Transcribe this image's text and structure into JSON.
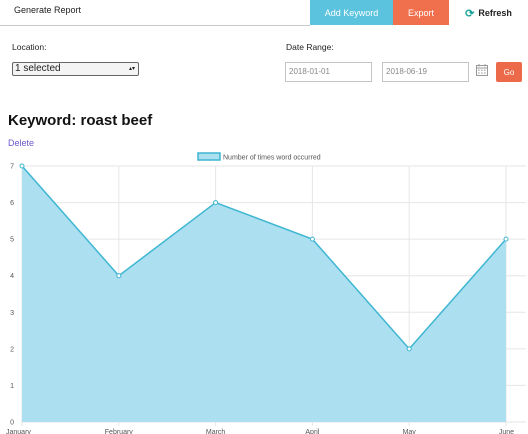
{
  "header": {
    "generate_tab": "Generate Report",
    "add_keyword": "Add Keyword",
    "export": "Export",
    "refresh": "Refresh"
  },
  "filters": {
    "location_label": "Location:",
    "location_value": "1 selected",
    "date_range_label": "Date Range:",
    "start_date": "2018-01-01",
    "end_date": "2018-06-19",
    "go_label": "Go"
  },
  "keyword": {
    "title": "Keyword: roast beef",
    "delete_label": "Delete"
  },
  "colors": {
    "area_fill": "#acdff0",
    "line": "#3fb6d2",
    "add_button": "#5bc3de",
    "export_button": "#f0704e",
    "go_button": "#ec6a49"
  },
  "chart_data": {
    "type": "area",
    "categories": [
      "January",
      "February",
      "March",
      "April",
      "May",
      "June"
    ],
    "series": [
      {
        "name": "Number of times word occurred",
        "values": [
          7,
          4,
          6,
          5,
          2,
          5
        ]
      }
    ],
    "yticks": [
      0,
      1,
      2,
      3,
      4,
      5,
      6,
      7
    ],
    "ylim": [
      0,
      7
    ],
    "grid": true,
    "legend": "top-center"
  }
}
